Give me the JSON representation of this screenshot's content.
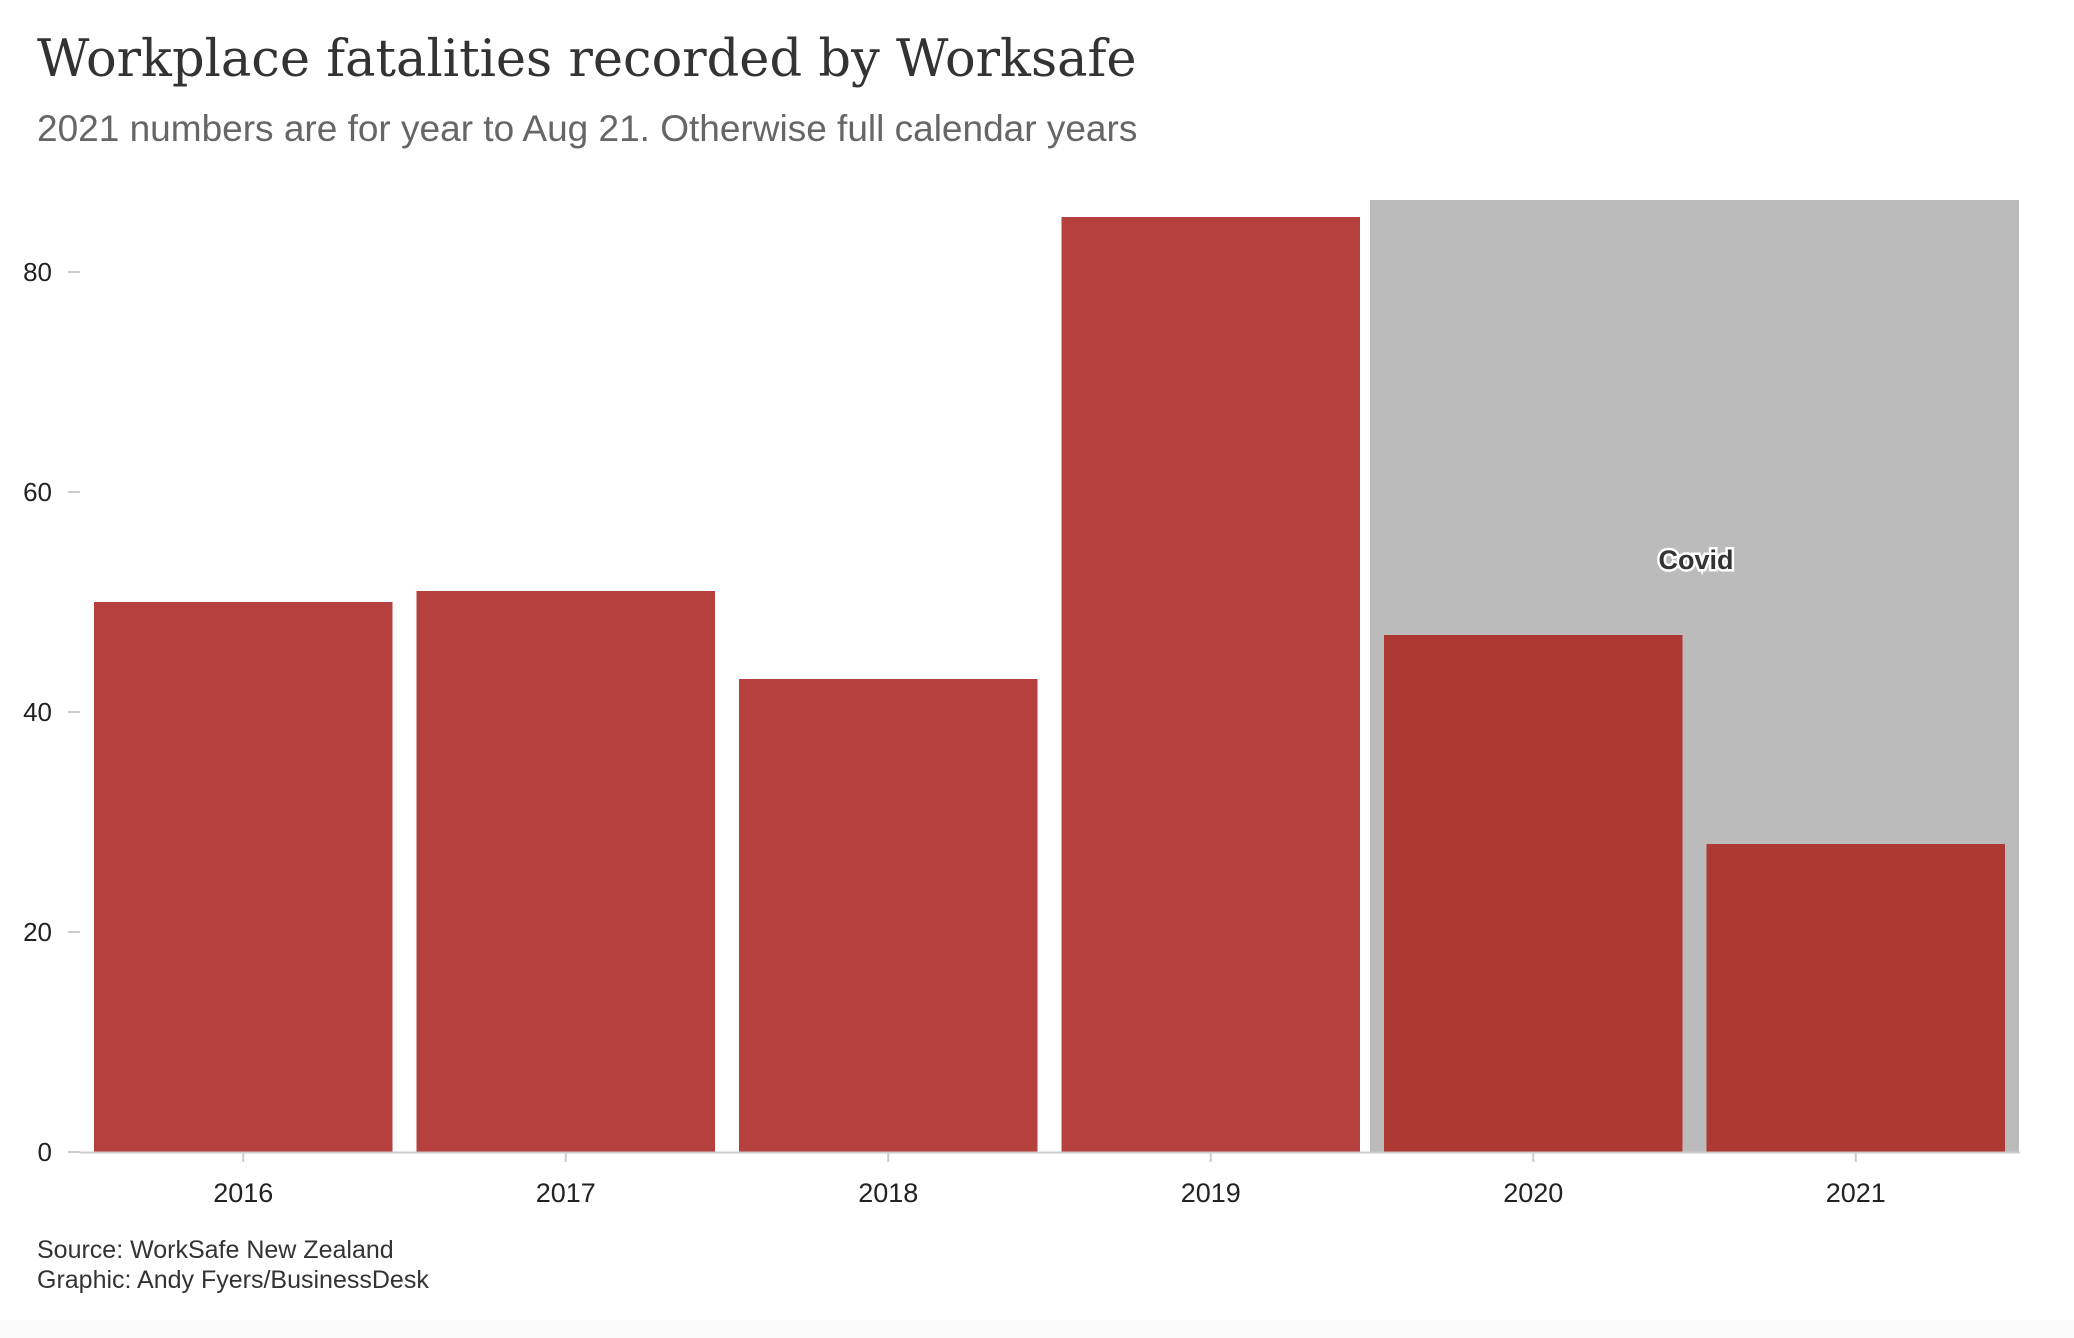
{
  "title": "Workplace fatalities recorded by Worksafe",
  "subtitle": "2021 numbers are for year to Aug 21. Otherwise full calendar years",
  "source": "Source: WorkSafe New Zealand",
  "credit": "Graphic: Andy Fyers/BusinessDesk",
  "colors": {
    "bar": "#b5403d",
    "bar_covid": "#ad3834",
    "covid_band": "#bbbbbb",
    "axis": "#cccccc",
    "tick_text": "#222222"
  },
  "chart_data": {
    "type": "bar",
    "categories": [
      "2016",
      "2017",
      "2018",
      "2019",
      "2020",
      "2021"
    ],
    "values": [
      50,
      51,
      43,
      85,
      47,
      28
    ],
    "ylim": [
      0,
      90
    ],
    "yticks": [
      0,
      20,
      40,
      60,
      80
    ],
    "grid": false,
    "annotation": {
      "label": "Covid",
      "categories": [
        "2020",
        "2021"
      ]
    }
  }
}
